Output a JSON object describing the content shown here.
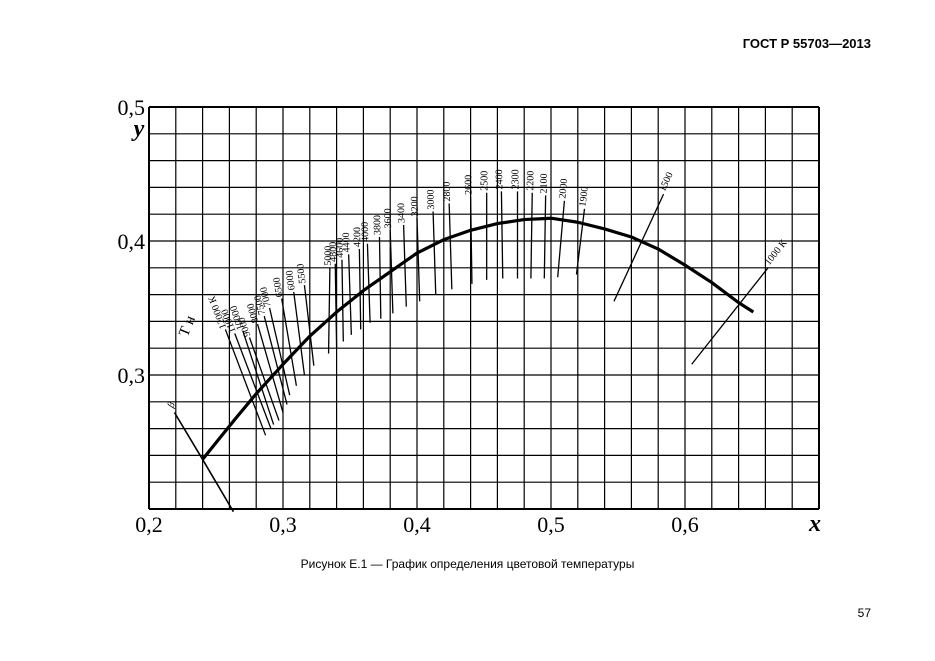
{
  "header": {
    "standard": "ГОСТ Р 55703—2013"
  },
  "caption": "Рисунок Е.1 — График определения цветовой температуры",
  "page_number": "57",
  "chart_data": {
    "type": "line",
    "title": "",
    "xlabel": "x",
    "ylabel": "y",
    "xlim": [
      0.2,
      0.7
    ],
    "ylim": [
      0.2,
      0.5
    ],
    "x_ticks": [
      {
        "value": 0.2,
        "label": "0,2"
      },
      {
        "value": 0.3,
        "label": "0,3"
      },
      {
        "value": 0.4,
        "label": "0,4"
      },
      {
        "value": 0.5,
        "label": "0,5"
      },
      {
        "value": 0.6,
        "label": "0,6"
      }
    ],
    "y_ticks": [
      {
        "value": 0.3,
        "label": "0,3"
      },
      {
        "value": 0.4,
        "label": "0,4"
      },
      {
        "value": 0.5,
        "label": "0,5"
      }
    ],
    "grid": true,
    "grid_step": 0.02,
    "planckian_locus": [
      [
        0.24,
        0.237
      ],
      [
        0.252,
        0.252
      ],
      [
        0.265,
        0.268
      ],
      [
        0.28,
        0.286
      ],
      [
        0.3,
        0.308
      ],
      [
        0.32,
        0.329
      ],
      [
        0.34,
        0.347
      ],
      [
        0.36,
        0.363
      ],
      [
        0.38,
        0.377
      ],
      [
        0.4,
        0.391
      ],
      [
        0.42,
        0.401
      ],
      [
        0.44,
        0.408
      ],
      [
        0.46,
        0.413
      ],
      [
        0.48,
        0.416
      ],
      [
        0.5,
        0.417
      ],
      [
        0.52,
        0.414
      ],
      [
        0.54,
        0.409
      ],
      [
        0.56,
        0.403
      ],
      [
        0.58,
        0.394
      ],
      [
        0.6,
        0.382
      ],
      [
        0.62,
        0.369
      ],
      [
        0.64,
        0.354
      ],
      [
        0.651,
        0.347
      ]
    ],
    "beta_line": {
      "label": "β",
      "points": [
        [
          0.219,
          0.272
        ],
        [
          0.24,
          0.237
        ],
        [
          0.263,
          0.198
        ]
      ]
    },
    "axis_label_tn": "Т н",
    "isotherms": [
      {
        "label": "12000 К",
        "points": [
          [
            0.257,
            0.334
          ],
          [
            0.287,
            0.255
          ]
        ]
      },
      {
        "label": "11000",
        "points": [
          [
            0.264,
            0.331
          ],
          [
            0.291,
            0.26
          ]
        ]
      },
      {
        "label": "10000",
        "points": [
          [
            0.27,
            0.333
          ],
          [
            0.293,
            0.263
          ]
        ]
      },
      {
        "label": "9000",
        "points": [
          [
            0.275,
            0.328
          ],
          [
            0.297,
            0.266
          ]
        ]
      },
      {
        "label": "8000",
        "points": [
          [
            0.281,
            0.338
          ],
          [
            0.3,
            0.272
          ]
        ]
      },
      {
        "label": "7500",
        "points": [
          [
            0.286,
            0.344
          ],
          [
            0.303,
            0.278
          ]
        ]
      },
      {
        "label": "7000",
        "points": [
          [
            0.29,
            0.35
          ],
          [
            0.305,
            0.285
          ]
        ]
      },
      {
        "label": "6500",
        "points": [
          [
            0.299,
            0.357
          ],
          [
            0.31,
            0.292
          ]
        ]
      },
      {
        "label": "6000",
        "points": [
          [
            0.308,
            0.362
          ],
          [
            0.316,
            0.3
          ]
        ]
      },
      {
        "label": "5500",
        "points": [
          [
            0.316,
            0.367
          ],
          [
            0.323,
            0.307
          ]
        ]
      },
      {
        "label": "5000",
        "points": [
          [
            0.335,
            0.38
          ],
          [
            0.334,
            0.316
          ]
        ]
      },
      {
        "label": "4800",
        "points": [
          [
            0.339,
            0.383
          ],
          [
            0.34,
            0.32
          ]
        ]
      },
      {
        "label": "4600",
        "points": [
          [
            0.344,
            0.386
          ],
          [
            0.345,
            0.325
          ]
        ]
      },
      {
        "label": "4400",
        "points": [
          [
            0.349,
            0.39
          ],
          [
            0.351,
            0.33
          ]
        ]
      },
      {
        "label": "4200",
        "points": [
          [
            0.357,
            0.394
          ],
          [
            0.358,
            0.334
          ]
        ]
      },
      {
        "label": "4000",
        "points": [
          [
            0.363,
            0.398
          ],
          [
            0.365,
            0.339
          ]
        ]
      },
      {
        "label": "3800",
        "points": [
          [
            0.372,
            0.403
          ],
          [
            0.373,
            0.342
          ]
        ]
      },
      {
        "label": "3600",
        "points": [
          [
            0.38,
            0.408
          ],
          [
            0.382,
            0.346
          ]
        ]
      },
      {
        "label": "3400",
        "points": [
          [
            0.39,
            0.412
          ],
          [
            0.392,
            0.351
          ]
        ]
      },
      {
        "label": "3200",
        "points": [
          [
            0.4,
            0.417
          ],
          [
            0.402,
            0.355
          ]
        ]
      },
      {
        "label": "3000",
        "points": [
          [
            0.412,
            0.422
          ],
          [
            0.414,
            0.36
          ]
        ]
      },
      {
        "label": "2800",
        "points": [
          [
            0.424,
            0.428
          ],
          [
            0.426,
            0.364
          ]
        ]
      },
      {
        "label": "2600",
        "points": [
          [
            0.44,
            0.433
          ],
          [
            0.441,
            0.368
          ]
        ]
      },
      {
        "label": "2500",
        "points": [
          [
            0.452,
            0.436
          ],
          [
            0.452,
            0.371
          ]
        ]
      },
      {
        "label": "2400",
        "points": [
          [
            0.463,
            0.437
          ],
          [
            0.464,
            0.372
          ]
        ]
      },
      {
        "label": "2300",
        "points": [
          [
            0.475,
            0.437
          ],
          [
            0.475,
            0.372
          ]
        ]
      },
      {
        "label": "2200",
        "points": [
          [
            0.486,
            0.436
          ],
          [
            0.485,
            0.372
          ]
        ]
      },
      {
        "label": "2100",
        "points": [
          [
            0.496,
            0.434
          ],
          [
            0.495,
            0.372
          ]
        ]
      },
      {
        "label": "2000",
        "points": [
          [
            0.51,
            0.43
          ],
          [
            0.505,
            0.373
          ]
        ]
      },
      {
        "label": "1900",
        "points": [
          [
            0.525,
            0.424
          ],
          [
            0.519,
            0.375
          ]
        ]
      },
      {
        "label": "1500",
        "points": [
          [
            0.584,
            0.435
          ],
          [
            0.547,
            0.355
          ]
        ]
      },
      {
        "label": "1000 К",
        "points": [
          [
            0.662,
            0.38
          ],
          [
            0.605,
            0.308
          ]
        ]
      }
    ]
  }
}
